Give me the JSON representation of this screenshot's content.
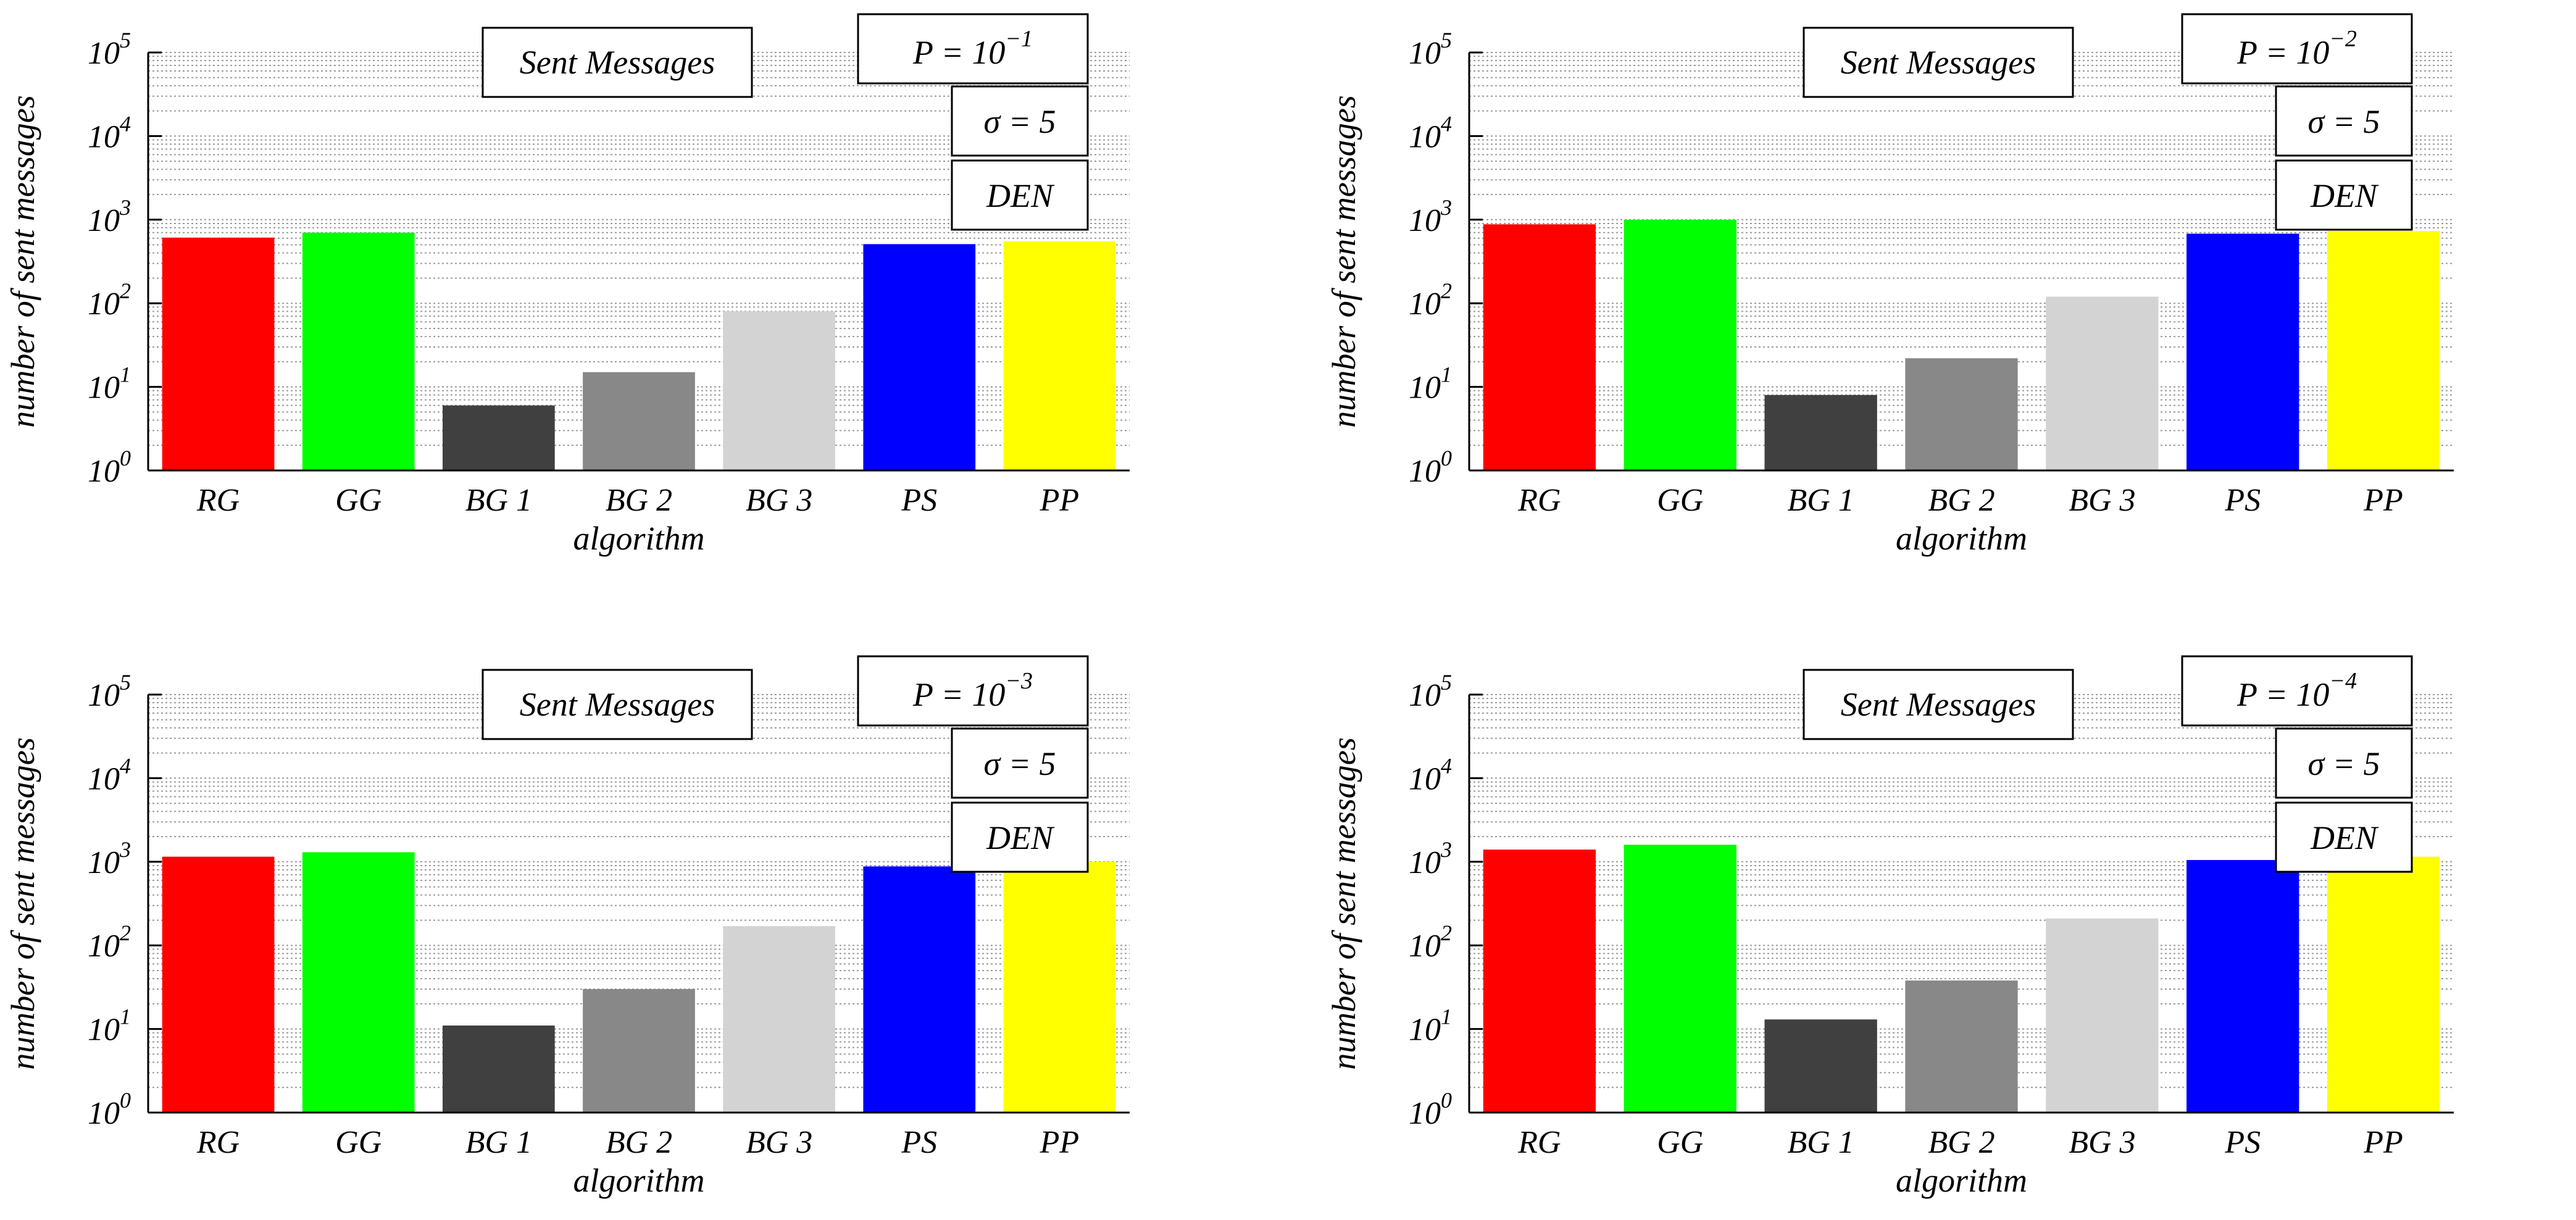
{
  "figure": {
    "layout": "2x2 grid of bar charts"
  },
  "chart_data": [
    {
      "type": "bar",
      "title": "Sent Messages",
      "annotations": [
        "P = 10^{−1}",
        "σ = 5",
        "DEN"
      ],
      "p_label": {
        "base": "P = 10",
        "exp": "−1"
      },
      "sigma_label": "σ = 5",
      "den_label": "DEN",
      "xlabel": "algorithm",
      "ylabel": "number of sent messages",
      "yscale": "log",
      "ylim": [
        1,
        100000
      ],
      "yticks": [
        1,
        10,
        100,
        1000,
        10000,
        100000
      ],
      "grid": "horizontal minor log grid, dotted",
      "categories": [
        "RG",
        "GG",
        "BG 1",
        "BG 2",
        "BG 3",
        "PS",
        "PP"
      ],
      "values": [
        610,
        700,
        6,
        15,
        80,
        510,
        550
      ],
      "colors": [
        "#ff0000",
        "#00ff00",
        "#404040",
        "#888888",
        "#d3d3d3",
        "#0000ff",
        "#ffff00"
      ]
    },
    {
      "type": "bar",
      "title": "Sent Messages",
      "annotations": [
        "P = 10^{−2}",
        "σ = 5",
        "DEN"
      ],
      "p_label": {
        "base": "P = 10",
        "exp": "−2"
      },
      "sigma_label": "σ = 5",
      "den_label": "DEN",
      "xlabel": "algorithm",
      "ylabel": "number of sent messages",
      "yscale": "log",
      "ylim": [
        1,
        100000
      ],
      "yticks": [
        1,
        10,
        100,
        1000,
        10000,
        100000
      ],
      "grid": "horizontal minor log grid, dotted",
      "categories": [
        "RG",
        "GG",
        "BG 1",
        "BG 2",
        "BG 3",
        "PS",
        "PP"
      ],
      "values": [
        880,
        1000,
        8,
        22,
        120,
        680,
        730
      ],
      "colors": [
        "#ff0000",
        "#00ff00",
        "#404040",
        "#888888",
        "#d3d3d3",
        "#0000ff",
        "#ffff00"
      ]
    },
    {
      "type": "bar",
      "title": "Sent Messages",
      "annotations": [
        "P = 10^{−3}",
        "σ = 5",
        "DEN"
      ],
      "p_label": {
        "base": "P = 10",
        "exp": "−3"
      },
      "sigma_label": "σ = 5",
      "den_label": "DEN",
      "xlabel": "algorithm",
      "ylabel": "number of sent messages",
      "yscale": "log",
      "ylim": [
        1,
        100000
      ],
      "yticks": [
        1,
        10,
        100,
        1000,
        10000,
        100000
      ],
      "grid": "horizontal minor log grid, dotted",
      "categories": [
        "RG",
        "GG",
        "BG 1",
        "BG 2",
        "BG 3",
        "PS",
        "PP"
      ],
      "values": [
        1150,
        1300,
        11,
        30,
        170,
        880,
        1000
      ],
      "colors": [
        "#ff0000",
        "#00ff00",
        "#404040",
        "#888888",
        "#d3d3d3",
        "#0000ff",
        "#ffff00"
      ]
    },
    {
      "type": "bar",
      "title": "Sent Messages",
      "annotations": [
        "P = 10^{−4}",
        "σ = 5",
        "DEN"
      ],
      "p_label": {
        "base": "P = 10",
        "exp": "−4"
      },
      "sigma_label": "σ = 5",
      "den_label": "DEN",
      "xlabel": "algorithm",
      "ylabel": "number of sent messages",
      "yscale": "log",
      "ylim": [
        1,
        100000
      ],
      "yticks": [
        1,
        10,
        100,
        1000,
        10000,
        100000
      ],
      "grid": "horizontal minor log grid, dotted",
      "categories": [
        "RG",
        "GG",
        "BG 1",
        "BG 2",
        "BG 3",
        "PS",
        "PP"
      ],
      "values": [
        1400,
        1600,
        13,
        38,
        210,
        1050,
        1150
      ],
      "colors": [
        "#ff0000",
        "#00ff00",
        "#404040",
        "#888888",
        "#d3d3d3",
        "#0000ff",
        "#ffff00"
      ]
    }
  ]
}
